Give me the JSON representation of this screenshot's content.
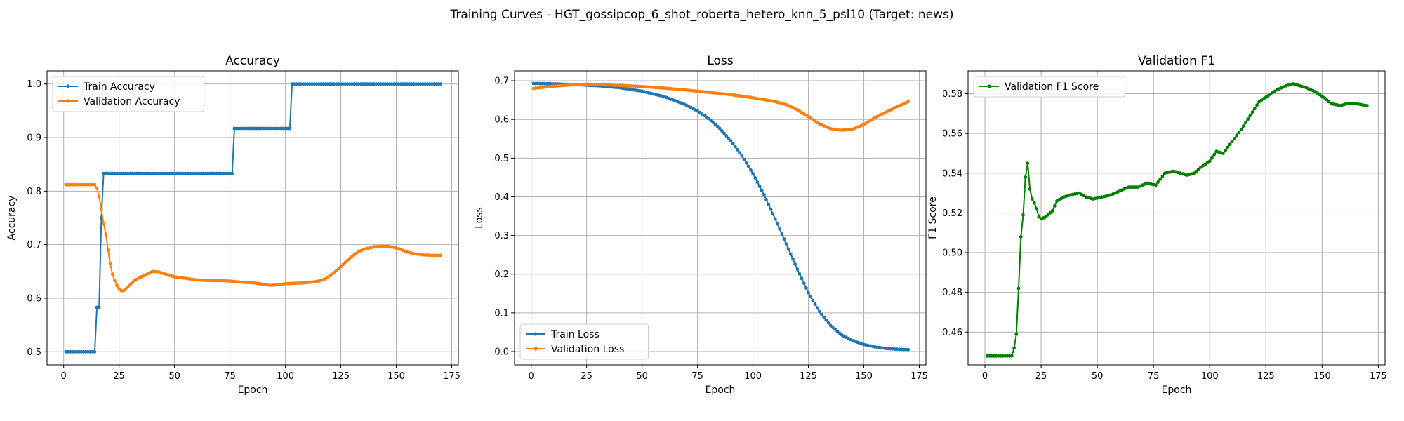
{
  "suptitle": "Training Curves - HGT_gossipcop_6_shot_roberta_hetero_knn_5_psl10 (Target: news)",
  "colors": {
    "blue": "#1f77b4",
    "orange": "#ff7f0e",
    "green": "#008000",
    "grid": "#b0b0b0"
  },
  "chart_data": [
    {
      "type": "line",
      "title": "Accuracy",
      "xlabel": "Epoch",
      "ylabel": "Accuracy",
      "xlim": [
        -7.5,
        178
      ],
      "ylim": [
        0.4755,
        1.0245
      ],
      "xticks": [
        0,
        25,
        50,
        75,
        100,
        125,
        150,
        175
      ],
      "yticks": [
        0.5,
        0.6,
        0.7,
        0.8,
        0.9,
        1.0
      ],
      "grid": true,
      "legend_position": "upper left",
      "markers": true,
      "series": [
        {
          "name": "Train Accuracy",
          "color": "#1f77b4",
          "points": [
            [
              1,
              0.5
            ],
            [
              13,
              0.5
            ],
            [
              14,
              0.5
            ],
            [
              15,
              0.583
            ],
            [
              16,
              0.583
            ],
            [
              17,
              0.75
            ],
            [
              18,
              0.833
            ],
            [
              76,
              0.833
            ],
            [
              77,
              0.917
            ],
            [
              102,
              0.917
            ],
            [
              103,
              1.0
            ],
            [
              170,
              1.0
            ]
          ]
        },
        {
          "name": "Validation Accuracy",
          "color": "#ff7f0e",
          "points": [
            [
              1,
              0.812
            ],
            [
              10,
              0.812
            ],
            [
              14,
              0.812
            ],
            [
              15,
              0.805
            ],
            [
              16,
              0.79
            ],
            [
              17,
              0.765
            ],
            [
              18,
              0.74
            ],
            [
              19,
              0.72
            ],
            [
              20,
              0.69
            ],
            [
              21,
              0.665
            ],
            [
              22,
              0.645
            ],
            [
              23,
              0.633
            ],
            [
              24,
              0.624
            ],
            [
              25,
              0.617
            ],
            [
              26,
              0.614
            ],
            [
              27,
              0.614
            ],
            [
              28,
              0.617
            ],
            [
              30,
              0.625
            ],
            [
              32,
              0.633
            ],
            [
              35,
              0.64
            ],
            [
              38,
              0.646
            ],
            [
              40,
              0.65
            ],
            [
              43,
              0.649
            ],
            [
              46,
              0.645
            ],
            [
              50,
              0.64
            ],
            [
              55,
              0.637
            ],
            [
              60,
              0.634
            ],
            [
              65,
              0.633
            ],
            [
              70,
              0.633
            ],
            [
              75,
              0.632
            ],
            [
              80,
              0.63
            ],
            [
              85,
              0.629
            ],
            [
              90,
              0.626
            ],
            [
              93,
              0.624
            ],
            [
              97,
              0.625
            ],
            [
              100,
              0.627
            ],
            [
              105,
              0.628
            ],
            [
              110,
              0.629
            ],
            [
              115,
              0.632
            ],
            [
              118,
              0.636
            ],
            [
              121,
              0.645
            ],
            [
              124,
              0.655
            ],
            [
              127,
              0.667
            ],
            [
              130,
              0.678
            ],
            [
              133,
              0.687
            ],
            [
              136,
              0.692
            ],
            [
              140,
              0.696
            ],
            [
              143,
              0.697
            ],
            [
              146,
              0.697
            ],
            [
              149,
              0.695
            ],
            [
              152,
              0.691
            ],
            [
              155,
              0.686
            ],
            [
              158,
              0.683
            ],
            [
              162,
              0.681
            ],
            [
              166,
              0.68
            ],
            [
              170,
              0.68
            ]
          ]
        }
      ]
    },
    {
      "type": "line",
      "title": "Loss",
      "xlabel": "Epoch",
      "ylabel": "Loss",
      "xlim": [
        -7.5,
        178
      ],
      "ylim": [
        -0.0345,
        0.7255
      ],
      "xticks": [
        0,
        25,
        50,
        75,
        100,
        125,
        150,
        175
      ],
      "yticks": [
        0.0,
        0.1,
        0.2,
        0.3,
        0.4,
        0.5,
        0.6,
        0.7
      ],
      "grid": true,
      "legend_position": "lower left",
      "markers": true,
      "series": [
        {
          "name": "Train Loss",
          "color": "#1f77b4",
          "points": [
            [
              1,
              0.693
            ],
            [
              10,
              0.692
            ],
            [
              20,
              0.69
            ],
            [
              30,
              0.687
            ],
            [
              40,
              0.682
            ],
            [
              50,
              0.673
            ],
            [
              60,
              0.659
            ],
            [
              70,
              0.637
            ],
            [
              75,
              0.622
            ],
            [
              80,
              0.602
            ],
            [
              85,
              0.577
            ],
            [
              90,
              0.545
            ],
            [
              95,
              0.506
            ],
            [
              100,
              0.46
            ],
            [
              105,
              0.405
            ],
            [
              110,
              0.343
            ],
            [
              115,
              0.278
            ],
            [
              120,
              0.213
            ],
            [
              125,
              0.152
            ],
            [
              130,
              0.103
            ],
            [
              135,
              0.067
            ],
            [
              140,
              0.043
            ],
            [
              145,
              0.028
            ],
            [
              150,
              0.018
            ],
            [
              155,
              0.012
            ],
            [
              160,
              0.008
            ],
            [
              165,
              0.006
            ],
            [
              170,
              0.005
            ]
          ]
        },
        {
          "name": "Validation Loss",
          "color": "#ff7f0e",
          "points": [
            [
              1,
              0.68
            ],
            [
              10,
              0.686
            ],
            [
              20,
              0.69
            ],
            [
              25,
              0.691
            ],
            [
              30,
              0.69
            ],
            [
              40,
              0.688
            ],
            [
              50,
              0.685
            ],
            [
              60,
              0.681
            ],
            [
              70,
              0.676
            ],
            [
              80,
              0.67
            ],
            [
              90,
              0.664
            ],
            [
              100,
              0.656
            ],
            [
              110,
              0.646
            ],
            [
              115,
              0.638
            ],
            [
              120,
              0.625
            ],
            [
              125,
              0.607
            ],
            [
              130,
              0.588
            ],
            [
              135,
              0.576
            ],
            [
              140,
              0.572
            ],
            [
              145,
              0.575
            ],
            [
              150,
              0.587
            ],
            [
              155,
              0.604
            ],
            [
              160,
              0.619
            ],
            [
              165,
              0.633
            ],
            [
              170,
              0.646
            ]
          ]
        }
      ]
    },
    {
      "type": "line",
      "title": "Validation F1",
      "xlabel": "Epoch",
      "ylabel": "F1 Score",
      "xlim": [
        -7.5,
        178
      ],
      "ylim": [
        0.4435,
        0.5915
      ],
      "xticks": [
        0,
        25,
        50,
        75,
        100,
        125,
        150,
        175
      ],
      "yticks": [
        0.46,
        0.48,
        0.5,
        0.52,
        0.54,
        0.56,
        0.58
      ],
      "grid": true,
      "legend_position": "upper left",
      "markers": true,
      "series": [
        {
          "name": "Validation F1 Score",
          "color": "#008000",
          "points": [
            [
              1,
              0.448
            ],
            [
              12,
              0.448
            ],
            [
              13,
              0.452
            ],
            [
              14,
              0.459
            ],
            [
              15,
              0.482
            ],
            [
              16,
              0.508
            ],
            [
              17,
              0.519
            ],
            [
              18,
              0.538
            ],
            [
              19,
              0.545
            ],
            [
              20,
              0.532
            ],
            [
              21,
              0.527
            ],
            [
              22,
              0.525
            ],
            [
              23,
              0.522
            ],
            [
              24,
              0.518
            ],
            [
              25,
              0.517
            ],
            [
              27,
              0.518
            ],
            [
              30,
              0.521
            ],
            [
              32,
              0.526
            ],
            [
              35,
              0.528
            ],
            [
              38,
              0.529
            ],
            [
              42,
              0.53
            ],
            [
              45,
              0.528
            ],
            [
              48,
              0.527
            ],
            [
              52,
              0.528
            ],
            [
              56,
              0.529
            ],
            [
              60,
              0.531
            ],
            [
              64,
              0.533
            ],
            [
              68,
              0.533
            ],
            [
              72,
              0.535
            ],
            [
              76,
              0.534
            ],
            [
              80,
              0.54
            ],
            [
              84,
              0.541
            ],
            [
              87,
              0.54
            ],
            [
              90,
              0.539
            ],
            [
              93,
              0.54
            ],
            [
              96,
              0.543
            ],
            [
              100,
              0.546
            ],
            [
              103,
              0.551
            ],
            [
              106,
              0.55
            ],
            [
              110,
              0.556
            ],
            [
              114,
              0.562
            ],
            [
              118,
              0.569
            ],
            [
              122,
              0.576
            ],
            [
              126,
              0.579
            ],
            [
              130,
              0.582
            ],
            [
              134,
              0.584
            ],
            [
              137,
              0.585
            ],
            [
              140,
              0.584
            ],
            [
              143,
              0.583
            ],
            [
              147,
              0.581
            ],
            [
              151,
              0.578
            ],
            [
              154,
              0.575
            ],
            [
              158,
              0.574
            ],
            [
              161,
              0.575
            ],
            [
              165,
              0.575
            ],
            [
              170,
              0.574
            ]
          ]
        }
      ]
    }
  ]
}
